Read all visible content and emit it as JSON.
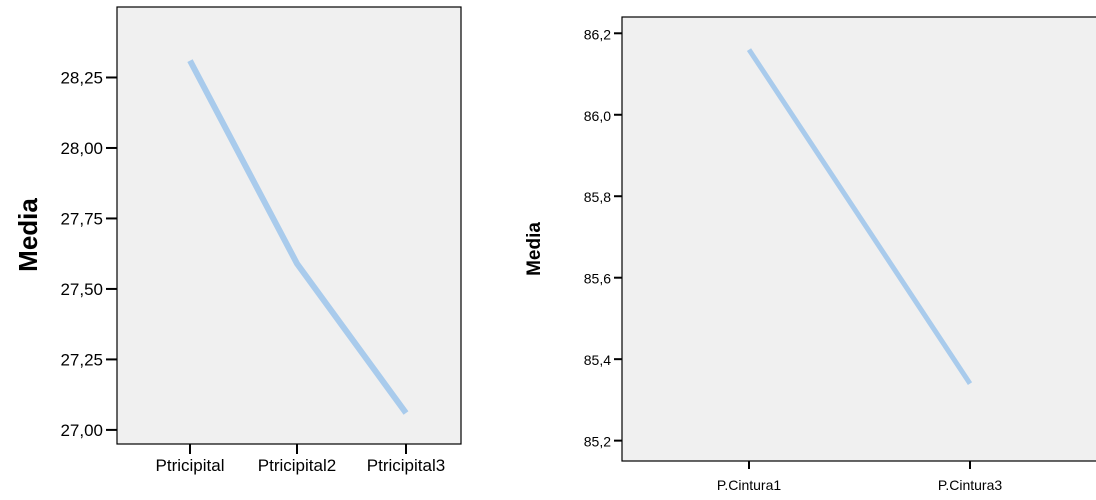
{
  "chart_data": [
    {
      "type": "line",
      "ylabel": "Media",
      "xlabel": "",
      "categories": [
        "Ptricipital",
        "Ptricipital2",
        "Ptricipital3"
      ],
      "series": [
        {
          "values": [
            28.31,
            27.59,
            27.06
          ],
          "color": "#a9cbec"
        }
      ],
      "yticks": [
        27.0,
        27.25,
        27.5,
        27.75,
        28.0,
        28.25
      ],
      "ytick_labels": [
        "27,00",
        "27,25",
        "27,50",
        "27,75",
        "28,00",
        "28,25"
      ],
      "ylim": [
        26.95,
        28.5
      ],
      "background": "#f0f0f0",
      "grid": false
    },
    {
      "type": "line",
      "ylabel": "Media",
      "xlabel": "",
      "categories": [
        "P.Cintura1",
        "P.Cintura3"
      ],
      "series": [
        {
          "values": [
            86.16,
            85.34
          ],
          "color": "#a9cbec"
        }
      ],
      "yticks": [
        85.2,
        85.4,
        85.6,
        85.8,
        86.0,
        86.2
      ],
      "ytick_labels": [
        "85,2",
        "85,4",
        "85,6",
        "85,8",
        "86,0",
        "86,2"
      ],
      "ylim": [
        85.15,
        86.24
      ],
      "background": "#f0f0f0",
      "grid": false
    }
  ]
}
